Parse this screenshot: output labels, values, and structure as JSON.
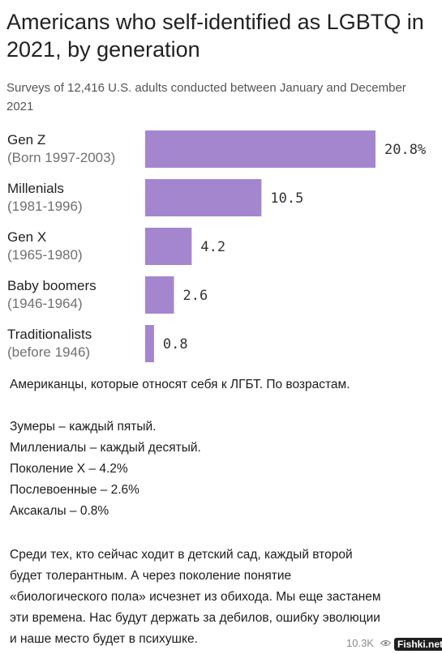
{
  "chart_data": {
    "type": "bar",
    "orientation": "horizontal",
    "title": "Americans who self-identified as LGBTQ in 2021, by generation",
    "subtitle": "Surveys of 12,416 U.S. adults conducted between January and December 2021",
    "categories": [
      {
        "name": "Gen Z",
        "sub": "(Born 1997-2003)"
      },
      {
        "name": "Millenials",
        "sub": "(1981-1996)"
      },
      {
        "name": "Gen X",
        "sub": "(1965-1980)"
      },
      {
        "name": "Baby boomers",
        "sub": "(1946-1964)"
      },
      {
        "name": "Traditionalists",
        "sub": "(before 1946)"
      }
    ],
    "values": [
      20.8,
      10.5,
      4.2,
      2.6,
      0.8
    ],
    "value_labels": [
      "20.8%",
      "10.5",
      "4.2",
      "2.6",
      "0.8"
    ],
    "xlim": [
      0,
      20.8
    ],
    "bar_color": "#a486cf"
  },
  "message": {
    "lines": [
      "Американцы, которые относят себя к ЛГБТ. По возрастам.",
      "Зумеры – каждый пятый.",
      "Миллениалы – каждый десятый.",
      "Поколение Х – 4.2%",
      "Послевоенные – 2.6%",
      "Аксакалы – 0.8%",
      "Среди тех, кто сейчас ходит в детский сад, каждый второй",
      "будет толерантным. А через поколение понятие",
      "«биологического пола» исчезнет из обихода. Мы еще застанем",
      "эти времена. Нас будут держать за дебилов, ошибку эволюции",
      "и наше место будет в психушке."
    ],
    "views": "10.3K",
    "watermark": "Fishki.net",
    "views_icon": "eye-icon"
  }
}
